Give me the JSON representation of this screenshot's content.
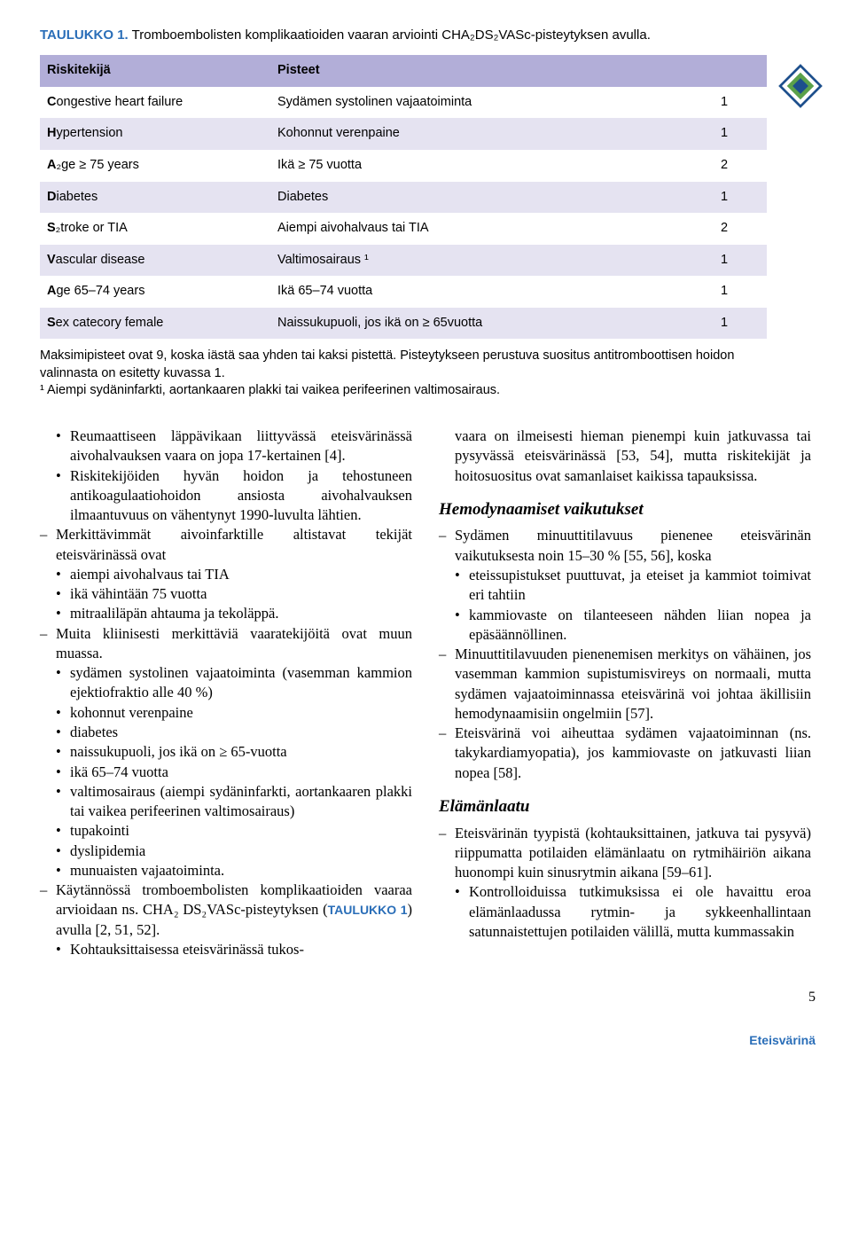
{
  "table": {
    "title_prefix": "TAULUKKO 1.",
    "title_text": " Tromboembolisten komplikaatioiden vaaran arviointi CHA₂DS₂VASc-pisteytyksen avulla.",
    "header_col1": "Riskitekijä",
    "header_col2": "Pisteet",
    "rows": [
      {
        "label": "Congestive heart failure",
        "desc": "Sydämen systolinen vajaatoiminta",
        "points": "1"
      },
      {
        "label": "Hypertension",
        "desc": "Kohonnut verenpaine",
        "points": "1"
      },
      {
        "label": "A₂ge ≥ 75 years",
        "desc": "Ikä ≥ 75 vuotta",
        "points": "2"
      },
      {
        "label": "Diabetes",
        "desc": "Diabetes",
        "points": "1"
      },
      {
        "label": "S₂troke or TIA",
        "desc": "Aiempi aivohalvaus tai TIA",
        "points": "2"
      },
      {
        "label": "Vascular disease",
        "desc": "Valtimosairaus ¹",
        "points": "1"
      },
      {
        "label": "Age 65–74 years",
        "desc": "Ikä 65–74 vuotta",
        "points": "1"
      },
      {
        "label": "Sex catecory female",
        "desc": "Naissukupuoli, jos ikä on ≥ 65vuotta",
        "points": "1"
      }
    ],
    "note1": "Maksimipisteet ovat 9, koska iästä saa yhden tai kaksi pistettä. Pisteytykseen perustuva suositus antitromboottisen hoidon valinnasta on esitetty kuvassa 1.",
    "note2": "¹ Aiempi sydäninfarkti, aortankaaren plakki tai vaikea perifeerinen valtimosairaus.",
    "header_bg": "#b2aed8",
    "row_even_bg": "#e5e3f1",
    "row_odd_bg": "#ffffff"
  },
  "logo": {
    "stroke": "#2a6eb8",
    "fill_mid": "#5aa14a",
    "fill_out": "#1d4f8c"
  },
  "col1": {
    "b1": "Reumaattiseen läppävikaan liittyvässä eteisvärinässä aivohalvauksen vaara on jopa 17-kertainen [4].",
    "b2": "Riskitekijöiden hyvän hoidon ja tehostuneen antikoagulaatiohoidon ansiosta aivohalvauksen ilmaantuvuus on vähentynyt 1990-luvulta lähtien.",
    "d1": "Merkittävimmät aivoinfarktille altistavat tekijät eteisvärinässä ovat",
    "d1a": "aiempi aivohalvaus tai TIA",
    "d1b": "ikä vähintään 75 vuotta",
    "d1c": "mitraaliläpän ahtauma ja tekoläppä.",
    "d2": "Muita kliinisesti merkittäviä vaaratekijöitä ovat muun muassa.",
    "d2a": "sydämen systolinen vajaatoiminta (vasemman kammion ejektiofraktio alle 40 %)",
    "d2b": "kohonnut verenpaine",
    "d2c": "diabetes",
    "d2d": "naissukupuoli, jos ikä on ≥ 65-vuotta",
    "d2e": "ikä 65–74 vuotta",
    "d2f": "valtimosairaus (aiempi sydäninfarkti, aortankaaren plakki tai vaikea perifeerinen valtimosairaus)",
    "d2g": "tupakointi",
    "d2h": "dyslipidemia",
    "d2i": "munuaisten vajaatoiminta.",
    "d3a": "Käytännössä tromboembolisten komplikaatioiden vaaraa arvioidaan ns. CHA₂ DS₂VASc-pisteytyksen (",
    "d3t": "TAULUKKO 1",
    "d3b": ") avulla [2, 51, 52].",
    "d3s": "Kohtauksittaisessa eteisvärinässä tukos-"
  },
  "col2": {
    "p1": "vaara on ilmeisesti hieman pienempi kuin jatkuvassa tai pysyvässä eteisvärinässä [53, 54], mutta riskitekijät ja hoitosuositus ovat samanlaiset kaikissa tapauksissa.",
    "h1": "Hemodynaamiset vaikutukset",
    "h1d1": "Sydämen minuuttitilavuus pienenee eteisvärinän vaikutuksesta noin 15–30 % [55, 56], koska",
    "h1d1a": "eteissupistukset puuttuvat, ja eteiset ja kammiot toimivat eri tahtiin",
    "h1d1b": "kammiovaste on tilanteeseen nähden liian nopea ja epäsäännöllinen.",
    "h1d2": "Minuuttitilavuuden pienenemisen merkitys on vähäinen, jos vasemman kammion supistumisvireys on normaali, mutta sydämen vajaatoiminnassa eteisvärinä voi johtaa äkillisiin hemodynaamisiin ongelmiin [57].",
    "h1d3": "Eteisvärinä voi aiheuttaa sydämen vajaatoiminnan (ns. takykardiamyopatia), jos kammiovaste on jatkuvasti liian nopea [58].",
    "h2": "Elämänlaatu",
    "h2d1": "Eteisvärinän tyypistä (kohtauksittainen, jatkuva tai pysyvä) riippumatta potilaiden elämänlaatu on rytmihäiriön aikana huonompi kuin sinusrytmin aikana [59–61].",
    "h2d1a": "Kontrolloiduissa tutkimuksissa ei ole havaittu eroa elämänlaadussa rytmin- ja sykkeenhallintaan satunnaistettujen potilaiden välillä, mutta kummassakin"
  },
  "footer": {
    "page": "5",
    "doc": "Eteisvärinä"
  }
}
